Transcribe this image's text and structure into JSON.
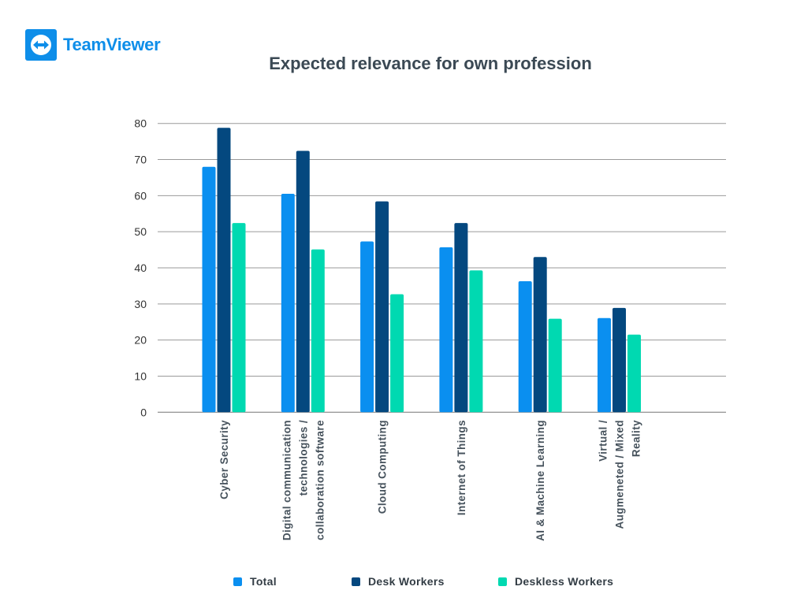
{
  "logo": {
    "text": "TeamViewer",
    "color": "#0e8ee9"
  },
  "chart_data": {
    "type": "bar",
    "title": "Expected relevance for own profession",
    "categories": [
      [
        "Cyber Security"
      ],
      [
        "Digital communication",
        "technologies /",
        "collaboration software"
      ],
      [
        "Cloud Computing"
      ],
      [
        "Internet of Things"
      ],
      [
        "AI & Machine Learning"
      ],
      [
        "Virtual /",
        "Augmeneted / Mixed",
        "Reality"
      ]
    ],
    "series": [
      {
        "name": "Total",
        "color": "#0a8ff0",
        "values": [
          68,
          60.5,
          47.3,
          45.7,
          36.3,
          26.1
        ]
      },
      {
        "name": "Desk Workers",
        "color": "#04487f",
        "values": [
          78.8,
          72.4,
          58.4,
          52.4,
          43,
          28.9
        ]
      },
      {
        "name": "Deskless Workers",
        "color": "#00d9b1",
        "values": [
          52.4,
          45.1,
          32.7,
          39.3,
          25.9,
          21.5
        ]
      }
    ],
    "ylim": [
      0,
      80
    ],
    "yticks": [
      0,
      10,
      20,
      30,
      40,
      50,
      60,
      70,
      80
    ],
    "grid": true,
    "legend": "bottom",
    "xlabel": "",
    "ylabel": ""
  }
}
